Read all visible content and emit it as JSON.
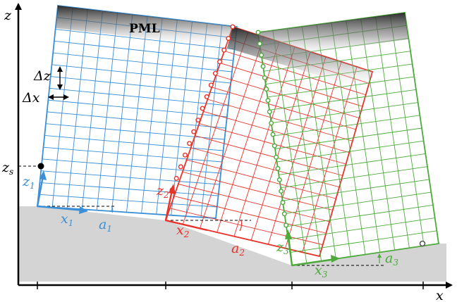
{
  "axes": {
    "x_label": "x",
    "z_label": "z"
  },
  "pml_label": "PML",
  "spacing": {
    "dz_label": "Δz",
    "dx_label": "Δx"
  },
  "source_label": {
    "main": "z",
    "sub": "s"
  },
  "domains": [
    {
      "id": 1,
      "color": "#3b8fd6",
      "x_label": "x",
      "x_sub": "1",
      "z_label": "z",
      "z_sub": "1",
      "a_label": "a",
      "a_sub": "1"
    },
    {
      "id": 2,
      "color": "#e8332a",
      "x_label": "x",
      "x_sub": "2",
      "z_label": "z",
      "z_sub": "2",
      "a_label": "a",
      "a_sub": "2"
    },
    {
      "id": 3,
      "color": "#4caa3a",
      "x_label": "x",
      "x_sub": "3",
      "z_label": "z",
      "z_sub": "3",
      "a_label": "a",
      "a_sub": "3"
    }
  ],
  "colors": {
    "ground": "#d4d4d4",
    "axis": "#000000",
    "node_fill": "#ffffff"
  }
}
